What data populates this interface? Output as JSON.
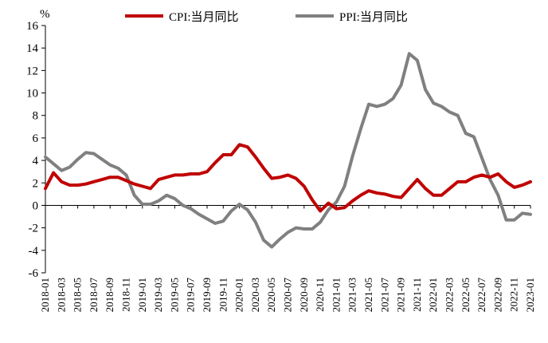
{
  "chart_data": {
    "type": "line",
    "unit_label": "%",
    "ylim": [
      -6,
      16
    ],
    "yticks": [
      -6,
      -4,
      -2,
      0,
      2,
      4,
      6,
      8,
      10,
      12,
      14,
      16
    ],
    "x": [
      "2018-01",
      "2018-02",
      "2018-03",
      "2018-04",
      "2018-05",
      "2018-06",
      "2018-07",
      "2018-08",
      "2018-09",
      "2018-10",
      "2018-11",
      "2018-12",
      "2019-01",
      "2019-02",
      "2019-03",
      "2019-04",
      "2019-05",
      "2019-06",
      "2019-07",
      "2019-08",
      "2019-09",
      "2019-10",
      "2019-11",
      "2019-12",
      "2020-01",
      "2020-02",
      "2020-03",
      "2020-04",
      "2020-05",
      "2020-06",
      "2020-07",
      "2020-08",
      "2020-09",
      "2020-10",
      "2020-11",
      "2020-12",
      "2021-01",
      "2021-02",
      "2021-03",
      "2021-04",
      "2021-05",
      "2021-06",
      "2021-07",
      "2021-08",
      "2021-09",
      "2021-10",
      "2021-11",
      "2021-12",
      "2022-01",
      "2022-02",
      "2022-03",
      "2022-04",
      "2022-05",
      "2022-06",
      "2022-07",
      "2022-08",
      "2022-09",
      "2022-10",
      "2022-11",
      "2022-12",
      "2023-01"
    ],
    "xtick_labels": [
      "2018-01",
      "2018-03",
      "2018-05",
      "2018-07",
      "2018-09",
      "2018-11",
      "2019-01",
      "2019-03",
      "2019-05",
      "2019-07",
      "2019-09",
      "2019-11",
      "2020-01",
      "2020-03",
      "2020-05",
      "2020-07",
      "2020-09",
      "2020-11",
      "2021-01",
      "2021-03",
      "2021-05",
      "2021-07",
      "2021-09",
      "2021-11",
      "2022-01",
      "2022-03",
      "2022-05",
      "2022-07",
      "2022-09",
      "2022-11",
      "2023-01"
    ],
    "series": [
      {
        "name": "CPI:当月同比",
        "color": "#c00000",
        "values": [
          1.5,
          2.9,
          2.1,
          1.8,
          1.8,
          1.9,
          2.1,
          2.3,
          2.5,
          2.5,
          2.2,
          1.9,
          1.7,
          1.5,
          2.3,
          2.5,
          2.7,
          2.7,
          2.8,
          2.8,
          3.0,
          3.8,
          4.5,
          4.5,
          5.4,
          5.2,
          4.3,
          3.3,
          2.4,
          2.5,
          2.7,
          2.4,
          1.7,
          0.5,
          -0.5,
          0.2,
          -0.3,
          -0.2,
          0.4,
          0.9,
          1.3,
          1.1,
          1.0,
          0.8,
          0.7,
          1.5,
          2.3,
          1.5,
          0.9,
          0.9,
          1.5,
          2.1,
          2.1,
          2.5,
          2.7,
          2.5,
          2.8,
          2.1,
          1.6,
          1.8,
          2.1
        ]
      },
      {
        "name": "PPI:当月同比",
        "color": "#808080",
        "values": [
          4.3,
          3.7,
          3.1,
          3.4,
          4.1,
          4.7,
          4.6,
          4.1,
          3.6,
          3.3,
          2.7,
          0.9,
          0.1,
          0.1,
          0.4,
          0.9,
          0.6,
          0.0,
          -0.3,
          -0.8,
          -1.2,
          -1.6,
          -1.4,
          -0.5,
          0.1,
          -0.4,
          -1.5,
          -3.1,
          -3.7,
          -3.0,
          -2.4,
          -2.0,
          -2.1,
          -2.1,
          -1.5,
          -0.4,
          0.3,
          1.7,
          4.4,
          6.8,
          9.0,
          8.8,
          9.0,
          9.5,
          10.7,
          13.5,
          12.9,
          10.3,
          9.1,
          8.8,
          8.3,
          8.0,
          6.4,
          6.1,
          4.2,
          2.3,
          0.9,
          -1.3,
          -1.3,
          -0.7,
          -0.8
        ]
      }
    ],
    "legend_position": "top-center",
    "grid": false
  }
}
